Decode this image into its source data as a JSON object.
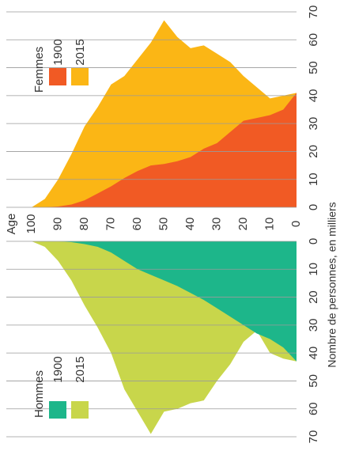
{
  "chart_data": {
    "type": "pyramid",
    "xlabel": "Age",
    "ylabel": "Nombre de personnes, en milliers",
    "x": [
      0,
      5,
      10,
      15,
      20,
      25,
      30,
      35,
      40,
      45,
      50,
      55,
      60,
      65,
      70,
      75,
      80,
      85,
      90,
      95,
      100
    ],
    "xlim": [
      0,
      100
    ],
    "xticks": [
      0,
      10,
      20,
      30,
      40,
      50,
      60,
      70,
      80,
      90,
      100
    ],
    "ylim": [
      0,
      70
    ],
    "yticks": [
      0,
      10,
      20,
      30,
      40,
      50,
      60,
      70
    ],
    "grid": true,
    "groups": [
      {
        "name": "Femmes",
        "series": [
          {
            "name": "1900",
            "color": "#f15a24",
            "values": [
              41,
              35,
              33,
              32,
              31,
              27,
              23,
              21,
              18,
              16.5,
              15.5,
              15,
              13,
              10.5,
              7.5,
              5,
              2.5,
              1,
              0.3,
              0,
              0
            ]
          },
          {
            "name": "2015",
            "color": "#fbb615",
            "values": [
              41,
              40,
              39,
              43,
              47,
              52,
              55,
              58,
              57,
              61,
              67,
              59,
              53,
              47,
              44,
              36,
              29,
              19,
              10,
              3,
              0
            ]
          }
        ]
      },
      {
        "name": "Hommes",
        "series": [
          {
            "name": "1900",
            "color": "#1db68a",
            "values": [
              43,
              38,
              35,
              33,
              30,
              27,
              24,
              21,
              18.5,
              16,
              14,
              12,
              10,
              7,
              4,
              2,
              1,
              0.3,
              0,
              0,
              0
            ]
          },
          {
            "name": "2015",
            "color": "#c8d64b",
            "values": [
              43,
              42,
              40,
              32,
              36,
              44,
              50,
              57,
              58,
              60,
              61,
              69,
              61,
              53,
              40,
              31,
              23,
              14,
              7,
              2,
              0
            ]
          }
        ]
      }
    ]
  }
}
